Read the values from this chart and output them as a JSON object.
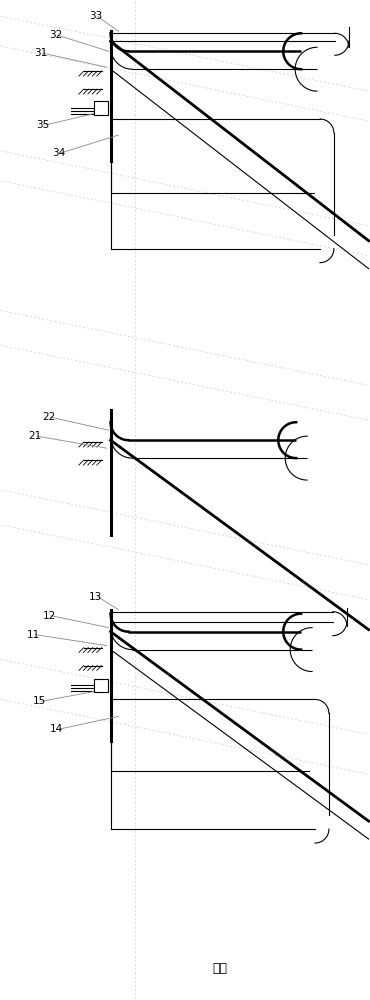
{
  "bg_color": "#ffffff",
  "line_color": "#000000",
  "dashed_color": "#c0c0c0",
  "fig_width": 3.7,
  "fig_height": 10.0,
  "dpi": 100,
  "title": "图例"
}
